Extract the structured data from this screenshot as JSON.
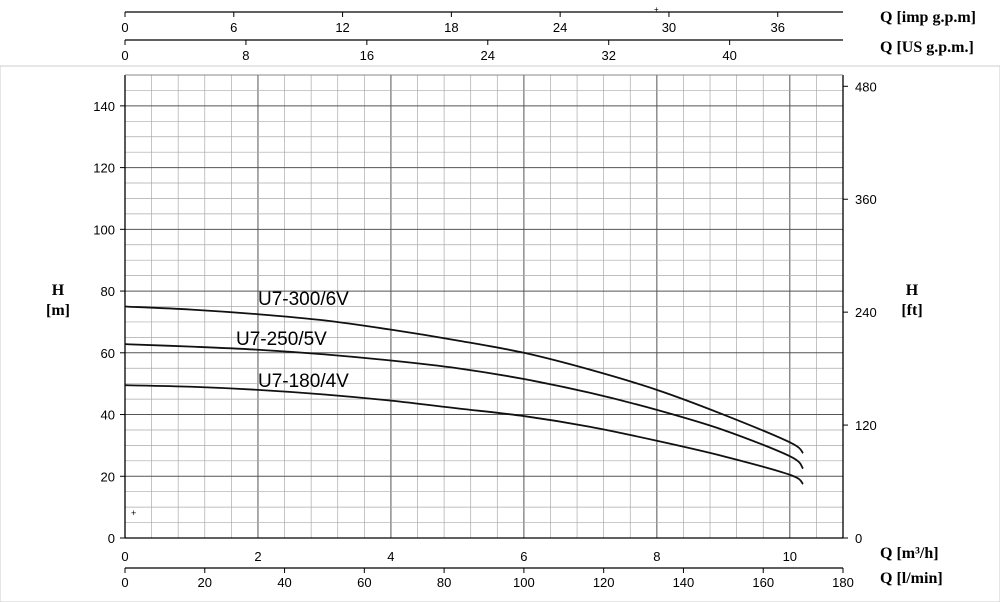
{
  "chart_data": {
    "type": "line",
    "x_axes": {
      "q_m3h": {
        "label": "Q [m³/h]",
        "range": [
          0,
          10.8
        ],
        "ticks": [
          0,
          2,
          4,
          6,
          8,
          10
        ]
      },
      "q_lmin": {
        "label": "Q [l/min]",
        "range": [
          0,
          180
        ],
        "ticks": [
          0,
          20,
          40,
          60,
          80,
          100,
          120,
          140,
          160,
          180
        ]
      },
      "q_imp": {
        "label": "Q [imp g.p.m]",
        "range": [
          0,
          39.6
        ],
        "ticks": [
          0,
          6,
          12,
          18,
          24,
          30,
          36
        ]
      },
      "q_us": {
        "label": "Q [US g.p.m.]",
        "range": [
          0,
          47.5
        ],
        "ticks": [
          0,
          8,
          16,
          24,
          32,
          40
        ]
      }
    },
    "y_axes": {
      "h_m": {
        "label_line1": "H",
        "label_line2": "[m]",
        "range": [
          0,
          150
        ],
        "ticks": [
          0,
          20,
          40,
          60,
          80,
          100,
          120,
          140
        ]
      },
      "h_ft": {
        "label_line1": "H",
        "label_line2": "[ft]",
        "range": [
          0,
          492
        ],
        "ticks": [
          0,
          120,
          240,
          360,
          480
        ]
      }
    },
    "grid": true,
    "series": [
      {
        "name": "U7-300/6V",
        "x": [
          0,
          1,
          2,
          3,
          4,
          5,
          6,
          7,
          8,
          9,
          10,
          10.2
        ],
        "y": [
          75,
          74,
          72.5,
          70.5,
          67.5,
          64,
          60,
          54.5,
          48,
          40,
          31,
          27.5
        ]
      },
      {
        "name": "U7-250/5V",
        "x": [
          0,
          1,
          2,
          3,
          4,
          5,
          6,
          7,
          8,
          9,
          10,
          10.2
        ],
        "y": [
          62.8,
          62,
          61,
          59.5,
          57.5,
          55,
          51.5,
          47,
          41.5,
          35,
          26.5,
          22.5
        ]
      },
      {
        "name": "U7-180/4V",
        "x": [
          0,
          1,
          2,
          3,
          4,
          5,
          6,
          7,
          8,
          9,
          10,
          10.2
        ],
        "y": [
          49.5,
          49,
          48,
          46.5,
          44.5,
          42,
          39.5,
          36,
          31.5,
          26.5,
          20.5,
          17.5
        ]
      }
    ]
  }
}
